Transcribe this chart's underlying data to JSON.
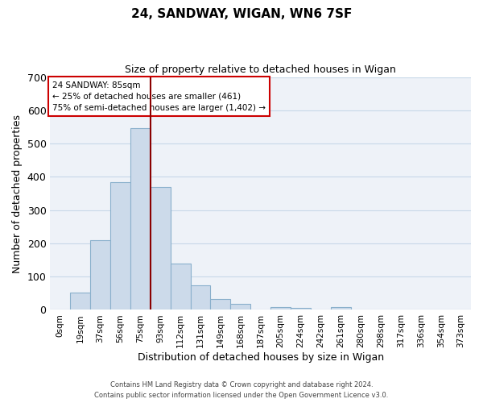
{
  "title": "24, SANDWAY, WIGAN, WN6 7SF",
  "subtitle": "Size of property relative to detached houses in Wigan",
  "xlabel": "Distribution of detached houses by size in Wigan",
  "ylabel": "Number of detached properties",
  "bar_labels": [
    "0sqm",
    "19sqm",
    "37sqm",
    "56sqm",
    "75sqm",
    "93sqm",
    "112sqm",
    "131sqm",
    "149sqm",
    "168sqm",
    "187sqm",
    "205sqm",
    "224sqm",
    "242sqm",
    "261sqm",
    "280sqm",
    "298sqm",
    "317sqm",
    "336sqm",
    "354sqm",
    "373sqm"
  ],
  "bar_values": [
    2,
    53,
    210,
    383,
    547,
    370,
    140,
    75,
    32,
    19,
    0,
    8,
    7,
    0,
    8,
    0,
    0,
    0,
    0,
    0,
    2
  ],
  "bar_color": "#ccdaea",
  "bar_edge_color": "#8ab0cc",
  "grid_color": "#c8d8e8",
  "background_color": "#eef2f8",
  "marker_label": "24 SANDWAY: 85sqm",
  "annotation_line1": "← 25% of detached houses are smaller (461)",
  "annotation_line2": "75% of semi-detached houses are larger (1,402) →",
  "annotation_box_color": "#ffffff",
  "annotation_box_edge": "#cc0000",
  "marker_line_color": "#8b0000",
  "ylim": [
    0,
    700
  ],
  "yticks": [
    0,
    100,
    200,
    300,
    400,
    500,
    600,
    700
  ],
  "footer1": "Contains HM Land Registry data © Crown copyright and database right 2024.",
  "footer2": "Contains public sector information licensed under the Open Government Licence v3.0."
}
